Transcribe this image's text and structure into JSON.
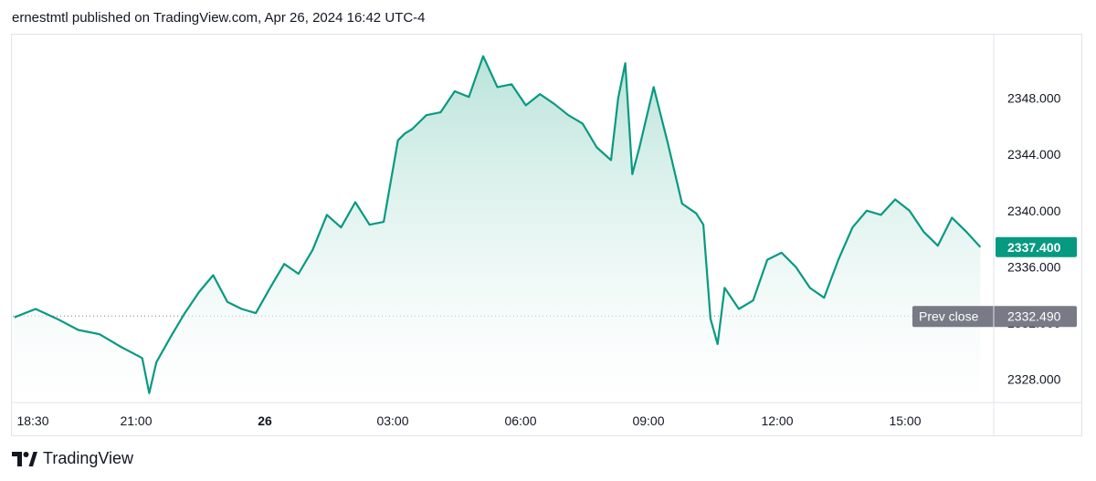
{
  "header": {
    "published_line": "ernestmtl published on TradingView.com, Apr 26, 2024 16:42 UTC-4"
  },
  "footer": {
    "brand": "TradingView"
  },
  "colors": {
    "line": "#089981",
    "area_top": "#b9e3d9",
    "area_bottom": "#ffffff",
    "price_badge": "#089981",
    "prev_close_badge": "#787b86",
    "axis_text": "#131722",
    "border": "#e0e3eb"
  },
  "chart_data": {
    "type": "area",
    "x_tick_labels": [
      "18:30",
      "21:00",
      "26",
      "03:00",
      "06:00",
      "09:00",
      "12:00",
      "15:00"
    ],
    "y_tick_labels": [
      "2348.000",
      "2344.000",
      "2340.000",
      "2336.000",
      "2332.000",
      "2328.000"
    ],
    "y_ticks": [
      2348,
      2344,
      2340,
      2336,
      2332,
      2328
    ],
    "ylim": [
      2326.4,
      2352.4
    ],
    "last_price": 2337.4,
    "last_price_label": "2337.400",
    "prev_close": 2332.49,
    "prev_close_label": "2332.490",
    "prev_close_text": "Prev close",
    "grid": false,
    "series": [
      {
        "x": [
          "18:00",
          "18:30",
          "19:00",
          "19:30",
          "20:00",
          "20:30",
          "21:00",
          "21:10",
          "21:20",
          "21:40",
          "22:00",
          "22:20",
          "22:40",
          "23:00",
          "23:20",
          "23:40",
          "00:00",
          "00:20",
          "00:40",
          "01:00",
          "01:20",
          "01:40",
          "02:00",
          "02:20",
          "02:40",
          "03:00",
          "03:10",
          "03:20",
          "03:40",
          "04:00",
          "04:20",
          "04:40",
          "05:00",
          "05:20",
          "05:40",
          "06:00",
          "06:20",
          "06:40",
          "07:00",
          "07:20",
          "07:40",
          "08:00",
          "08:10",
          "08:20",
          "08:30",
          "08:40",
          "09:00",
          "09:20",
          "09:40",
          "10:00",
          "10:10",
          "10:20",
          "10:30",
          "10:40",
          "11:00",
          "11:20",
          "11:40",
          "12:00",
          "12:20",
          "12:40",
          "13:00",
          "13:20",
          "13:40",
          "14:00",
          "14:20",
          "14:40",
          "15:00",
          "15:20",
          "15:40",
          "16:00",
          "16:20",
          "16:40"
        ],
        "values": [
          2332.4,
          2333.0,
          2332.3,
          2331.5,
          2331.2,
          2330.3,
          2329.5,
          2327.0,
          2329.2,
          2331.0,
          2332.7,
          2334.2,
          2335.4,
          2333.5,
          2333.0,
          2332.7,
          2334.5,
          2336.2,
          2335.5,
          2337.2,
          2339.7,
          2338.8,
          2340.6,
          2339.0,
          2339.2,
          2345.0,
          2345.5,
          2345.8,
          2346.8,
          2347.0,
          2348.5,
          2348.1,
          2351.0,
          2348.8,
          2349.0,
          2347.5,
          2348.3,
          2347.6,
          2346.8,
          2346.2,
          2344.5,
          2343.6,
          2348.0,
          2350.5,
          2342.6,
          2344.5,
          2348.8,
          2344.8,
          2340.5,
          2339.8,
          2339.0,
          2332.3,
          2330.5,
          2334.5,
          2333.0,
          2333.6,
          2336.5,
          2337.0,
          2336.0,
          2334.5,
          2333.8,
          2336.5,
          2338.8,
          2340.0,
          2339.7,
          2340.8,
          2340.0,
          2338.5,
          2337.5,
          2339.5,
          2338.5,
          2337.4
        ]
      }
    ]
  }
}
